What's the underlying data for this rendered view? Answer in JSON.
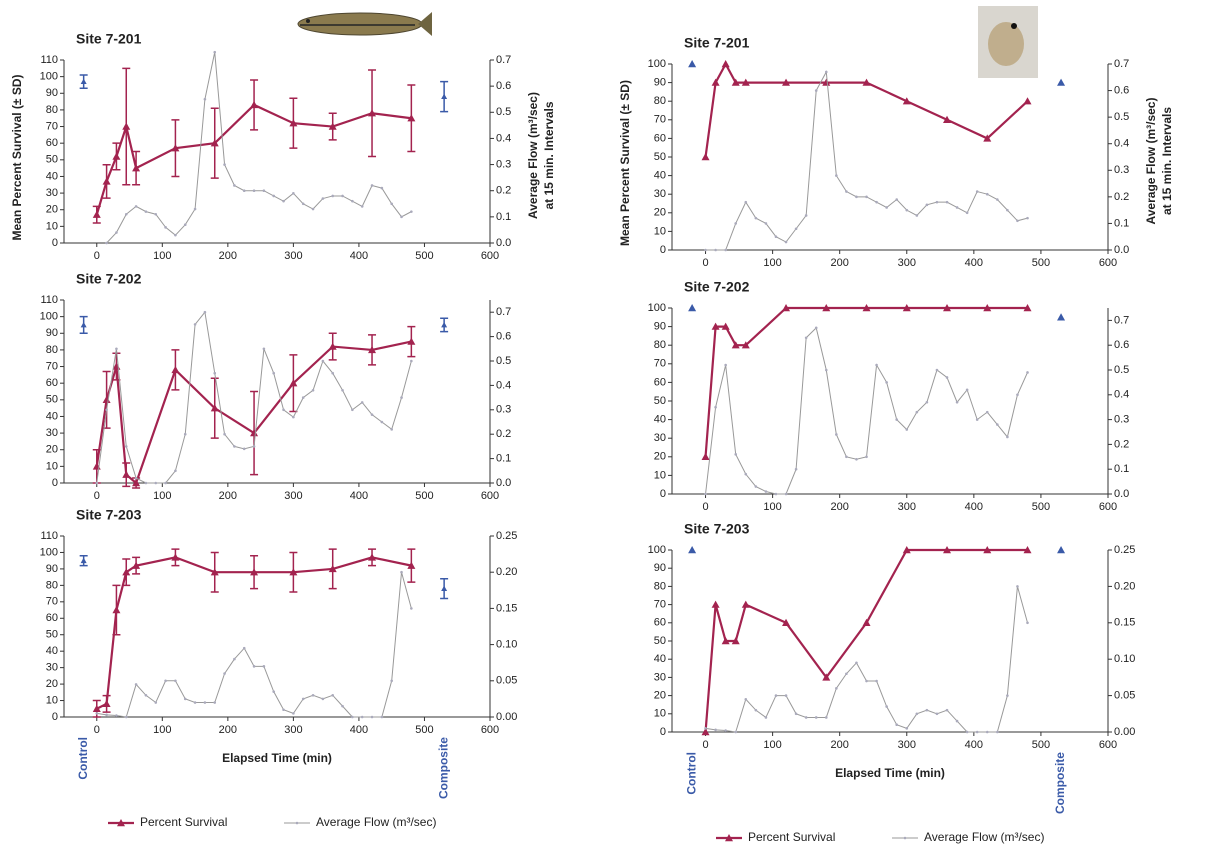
{
  "chart_data": [
    {
      "type": "line",
      "title": "Site 7-201",
      "ylabel": "Mean Percent Survival (± SD)",
      "y2label": [
        "Average  Flow (m³/sec)",
        "at 15 min. Intervals"
      ],
      "xlim": [
        -50,
        600
      ],
      "xticks": [
        0,
        100,
        200,
        300,
        400,
        500,
        600
      ],
      "ylim": [
        0,
        110
      ],
      "yticks": [
        0,
        10,
        20,
        30,
        40,
        50,
        60,
        70,
        80,
        90,
        100,
        110
      ],
      "y2lim": [
        0,
        0.7
      ],
      "y2ticks": [
        {
          "value": 0,
          "label": "0.0"
        },
        0.1,
        0.2,
        0.3,
        0.4,
        0.5,
        0.6,
        0.7
      ],
      "series": [
        {
          "color": "#a3234f",
          "marker": "triangle",
          "x": [
            0,
            15,
            30,
            45,
            60,
            120,
            180,
            240,
            300,
            360,
            420,
            480
          ],
          "values": [
            17,
            37,
            52,
            70,
            45,
            57,
            60,
            83,
            72,
            70,
            78,
            75
          ],
          "errors": [
            5,
            10,
            8,
            35,
            10,
            17,
            21,
            15,
            15,
            8,
            26,
            20
          ]
        },
        {
          "color": "#999999",
          "marker": "dot",
          "axis": "y2",
          "x": [
            15,
            30,
            45,
            60,
            75,
            90,
            105,
            120,
            135,
            150,
            165,
            180,
            195,
            210,
            225,
            240,
            255,
            270,
            285,
            300,
            315,
            330,
            345,
            360,
            375,
            390,
            405,
            420,
            435,
            450,
            465,
            480
          ],
          "values": [
            0,
            0.04,
            0.11,
            0.14,
            0.12,
            0.11,
            0.06,
            0.03,
            0.07,
            0.13,
            0.55,
            0.73,
            0.3,
            0.22,
            0.2,
            0.2,
            0.2,
            0.18,
            0.16,
            0.19,
            0.15,
            0.13,
            0.17,
            0.18,
            0.18,
            0.16,
            0.14,
            0.22,
            0.21,
            0.15,
            0.1,
            0.12
          ]
        }
      ],
      "reference_points": [
        {
          "color": "#3a5aa8",
          "x": -20,
          "value": 97,
          "error": 4
        },
        {
          "color": "#3a5aa8",
          "x": 530,
          "value": 88,
          "error": 9
        }
      ]
    },
    {
      "type": "line",
      "title": "Site 7-202",
      "xlim": [
        -50,
        600
      ],
      "xticks": [
        0,
        100,
        200,
        300,
        400,
        500,
        600
      ],
      "ylim": [
        0,
        110
      ],
      "yticks": [
        0,
        10,
        20,
        30,
        40,
        50,
        60,
        70,
        80,
        90,
        100,
        110
      ],
      "y2lim": [
        0,
        0.75
      ],
      "y2ticks": [
        {
          "value": 0,
          "label": "0.0"
        },
        0.1,
        0.2,
        0.3,
        0.4,
        0.5,
        0.6,
        0.7
      ],
      "series": [
        {
          "color": "#a3234f",
          "marker": "triangle",
          "x": [
            0,
            15,
            30,
            45,
            60,
            120,
            180,
            240,
            300,
            360,
            420,
            480
          ],
          "values": [
            10,
            50,
            70,
            5,
            0,
            68,
            45,
            30,
            60,
            82,
            80,
            85
          ],
          "errors": [
            10,
            17,
            8,
            7,
            3,
            12,
            18,
            25,
            17,
            8,
            9,
            9
          ]
        },
        {
          "color": "#999999",
          "marker": "dot",
          "axis": "y2",
          "x": [
            0,
            15,
            30,
            45,
            60,
            75,
            90,
            105,
            120,
            135,
            150,
            165,
            180,
            195,
            210,
            225,
            240,
            255,
            270,
            285,
            300,
            315,
            330,
            345,
            360,
            375,
            390,
            405,
            420,
            435,
            450,
            465,
            480
          ],
          "values": [
            0,
            0.3,
            0.55,
            0.15,
            0.02,
            0,
            0,
            0,
            0.05,
            0.2,
            0.65,
            0.7,
            0.45,
            0.2,
            0.15,
            0.14,
            0.15,
            0.55,
            0.45,
            0.3,
            0.27,
            0.35,
            0.38,
            0.5,
            0.45,
            0.38,
            0.3,
            0.33,
            0.28,
            0.25,
            0.22,
            0.35,
            0.5
          ]
        }
      ],
      "reference_points": [
        {
          "color": "#3a5aa8",
          "x": -20,
          "value": 95,
          "error": 5
        },
        {
          "color": "#3a5aa8",
          "x": 530,
          "value": 95,
          "error": 4
        }
      ]
    },
    {
      "type": "line",
      "title": "Site 7-203",
      "xlabel": "Elapsed Time (min)",
      "legend": "bottom",
      "xlim": [
        -50,
        600
      ],
      "xticks": [
        0,
        100,
        200,
        300,
        400,
        500,
        600
      ],
      "ylim": [
        0,
        110
      ],
      "yticks": [
        0,
        10,
        20,
        30,
        40,
        50,
        60,
        70,
        80,
        90,
        100,
        110
      ],
      "y2lim": [
        0,
        0.25
      ],
      "y2ticks": [
        {
          "value": 0,
          "label": "0.00"
        },
        0.05,
        {
          "value": 0.1,
          "label": "0.10"
        },
        0.15,
        {
          "value": 0.2,
          "label": "0.20"
        },
        0.25
      ],
      "series": [
        {
          "name": "Percent Survival",
          "color": "#a3234f",
          "marker": "triangle",
          "x": [
            0,
            15,
            30,
            45,
            60,
            120,
            180,
            240,
            300,
            360,
            420,
            480
          ],
          "values": [
            5,
            8,
            65,
            88,
            92,
            97,
            88,
            88,
            88,
            90,
            97,
            92
          ],
          "errors": [
            5,
            5,
            15,
            8,
            5,
            5,
            12,
            10,
            12,
            12,
            5,
            10
          ]
        },
        {
          "name": "Average Flow (m³/sec)",
          "color": "#999999",
          "marker": "dot",
          "axis": "y2",
          "x": [
            0,
            15,
            30,
            45,
            60,
            75,
            90,
            105,
            120,
            135,
            150,
            165,
            180,
            195,
            210,
            225,
            240,
            255,
            270,
            285,
            300,
            315,
            330,
            345,
            360,
            375,
            390,
            405,
            420,
            435,
            450,
            465,
            480
          ],
          "values": [
            0.005,
            0.003,
            0.002,
            0,
            0.045,
            0.03,
            0.02,
            0.05,
            0.05,
            0.025,
            0.02,
            0.02,
            0.02,
            0.06,
            0.08,
            0.095,
            0.07,
            0.07,
            0.035,
            0.01,
            0.005,
            0.025,
            0.03,
            0.025,
            0.03,
            0.015,
            0,
            0,
            0,
            0,
            0.05,
            0.2,
            0.15
          ]
        }
      ],
      "reference_points": [
        {
          "label": "Control",
          "color": "#3a5aa8",
          "x": -20,
          "value": 95,
          "error": 3
        },
        {
          "label": "Composite",
          "color": "#3a5aa8",
          "x": 530,
          "value": 78,
          "error": 6
        }
      ]
    },
    {
      "type": "line",
      "title": "Site 7-201",
      "ylabel": "Mean Percent Survival (± SD)",
      "y2label": [
        "Average  Flow (m³/sec)",
        "at 15 min. Intervals"
      ],
      "xlim": [
        -50,
        600
      ],
      "xticks": [
        0,
        100,
        200,
        300,
        400,
        500,
        600
      ],
      "ylim": [
        0,
        100
      ],
      "yticks": [
        0,
        10,
        20,
        30,
        40,
        50,
        60,
        70,
        80,
        90,
        100
      ],
      "y2lim": [
        0,
        0.7
      ],
      "y2ticks": [
        {
          "value": 0,
          "label": "0.0"
        },
        0.1,
        0.2,
        0.3,
        0.4,
        0.5,
        0.6,
        0.7
      ],
      "series": [
        {
          "color": "#a3234f",
          "marker": "triangle",
          "x": [
            0,
            15,
            30,
            45,
            60,
            120,
            180,
            240,
            300,
            360,
            420,
            480
          ],
          "values": [
            50,
            90,
            100,
            90,
            90,
            90,
            90,
            90,
            80,
            70,
            60,
            80
          ]
        },
        {
          "color": "#999999",
          "marker": "dot",
          "axis": "y2",
          "x": [
            0,
            15,
            30,
            45,
            60,
            75,
            90,
            105,
            120,
            135,
            150,
            165,
            180,
            195,
            210,
            225,
            240,
            255,
            270,
            285,
            300,
            315,
            330,
            345,
            360,
            375,
            390,
            405,
            420,
            435,
            450,
            465,
            480
          ],
          "values": [
            0,
            0,
            0,
            0.1,
            0.18,
            0.12,
            0.1,
            0.05,
            0.03,
            0.08,
            0.13,
            0.6,
            0.67,
            0.28,
            0.22,
            0.2,
            0.2,
            0.18,
            0.16,
            0.19,
            0.15,
            0.13,
            0.17,
            0.18,
            0.18,
            0.16,
            0.14,
            0.22,
            0.21,
            0.19,
            0.15,
            0.11,
            0.12
          ]
        }
      ],
      "reference_points": [
        {
          "color": "#3a5aa8",
          "x": -20,
          "value": 100
        },
        {
          "color": "#3a5aa8",
          "x": 530,
          "value": 90
        }
      ]
    },
    {
      "type": "line",
      "title": "Site 7-202",
      "xlim": [
        -50,
        600
      ],
      "xticks": [
        0,
        100,
        200,
        300,
        400,
        500,
        600
      ],
      "ylim": [
        0,
        100
      ],
      "yticks": [
        0,
        10,
        20,
        30,
        40,
        50,
        60,
        70,
        80,
        90,
        100
      ],
      "y2lim": [
        0,
        0.75
      ],
      "y2ticks": [
        {
          "value": 0,
          "label": "0.0"
        },
        0.1,
        0.2,
        0.3,
        0.4,
        0.5,
        0.6,
        0.7
      ],
      "series": [
        {
          "color": "#a3234f",
          "marker": "triangle",
          "x": [
            0,
            15,
            30,
            45,
            60,
            120,
            180,
            240,
            300,
            360,
            420,
            480
          ],
          "values": [
            20,
            90,
            90,
            80,
            80,
            100,
            100,
            100,
            100,
            100,
            100,
            100
          ]
        },
        {
          "color": "#999999",
          "marker": "dot",
          "axis": "y2",
          "x": [
            0,
            15,
            30,
            45,
            60,
            75,
            90,
            105,
            120,
            135,
            150,
            165,
            180,
            195,
            210,
            225,
            240,
            255,
            270,
            285,
            300,
            315,
            330,
            345,
            360,
            375,
            390,
            405,
            420,
            435,
            450,
            465,
            480
          ],
          "values": [
            0,
            0.35,
            0.52,
            0.16,
            0.08,
            0.03,
            0.01,
            0,
            0,
            0.1,
            0.63,
            0.67,
            0.5,
            0.24,
            0.15,
            0.14,
            0.15,
            0.52,
            0.45,
            0.3,
            0.26,
            0.33,
            0.37,
            0.5,
            0.47,
            0.37,
            0.42,
            0.3,
            0.33,
            0.28,
            0.23,
            0.4,
            0.49
          ]
        }
      ],
      "reference_points": [
        {
          "color": "#3a5aa8",
          "x": -20,
          "value": 100
        },
        {
          "color": "#3a5aa8",
          "x": 530,
          "value": 95
        }
      ]
    },
    {
      "type": "line",
      "title": "Site 7-203",
      "xlabel": "Elapsed Time (min)",
      "legend": "bottom",
      "xlim": [
        -50,
        600
      ],
      "xticks": [
        0,
        100,
        200,
        300,
        400,
        500,
        600
      ],
      "ylim": [
        0,
        100
      ],
      "yticks": [
        0,
        10,
        20,
        30,
        40,
        50,
        60,
        70,
        80,
        90,
        100
      ],
      "y2lim": [
        0,
        0.25
      ],
      "y2ticks": [
        {
          "value": 0,
          "label": "0.00"
        },
        0.05,
        {
          "value": 0.1,
          "label": "0.10"
        },
        0.15,
        {
          "value": 0.2,
          "label": "0.20"
        },
        0.25
      ],
      "series": [
        {
          "name": "Percent Survival",
          "color": "#a3234f",
          "marker": "triangle",
          "x": [
            0,
            15,
            30,
            45,
            60,
            120,
            180,
            240,
            300,
            360,
            420,
            480
          ],
          "values": [
            0,
            70,
            50,
            50,
            70,
            60,
            30,
            60,
            100,
            100,
            100,
            100
          ]
        },
        {
          "name": "Average Flow (m³/sec)",
          "color": "#999999",
          "marker": "dot",
          "axis": "y2",
          "x": [
            0,
            15,
            30,
            45,
            60,
            75,
            90,
            105,
            120,
            135,
            150,
            165,
            180,
            195,
            210,
            225,
            240,
            255,
            270,
            285,
            300,
            315,
            330,
            345,
            360,
            375,
            390,
            405,
            420,
            435,
            450,
            465,
            480
          ],
          "values": [
            0.005,
            0.003,
            0.002,
            0,
            0.045,
            0.03,
            0.02,
            0.05,
            0.05,
            0.025,
            0.02,
            0.02,
            0.02,
            0.06,
            0.08,
            0.095,
            0.07,
            0.07,
            0.035,
            0.01,
            0.005,
            0.025,
            0.03,
            0.025,
            0.03,
            0.015,
            0,
            0,
            0,
            0,
            0.05,
            0.2,
            0.15
          ]
        }
      ],
      "reference_points": [
        {
          "label": "Control",
          "color": "#3a5aa8",
          "x": -20,
          "value": 100
        },
        {
          "label": "Composite",
          "color": "#3a5aa8",
          "x": 530,
          "value": 100
        }
      ]
    }
  ]
}
